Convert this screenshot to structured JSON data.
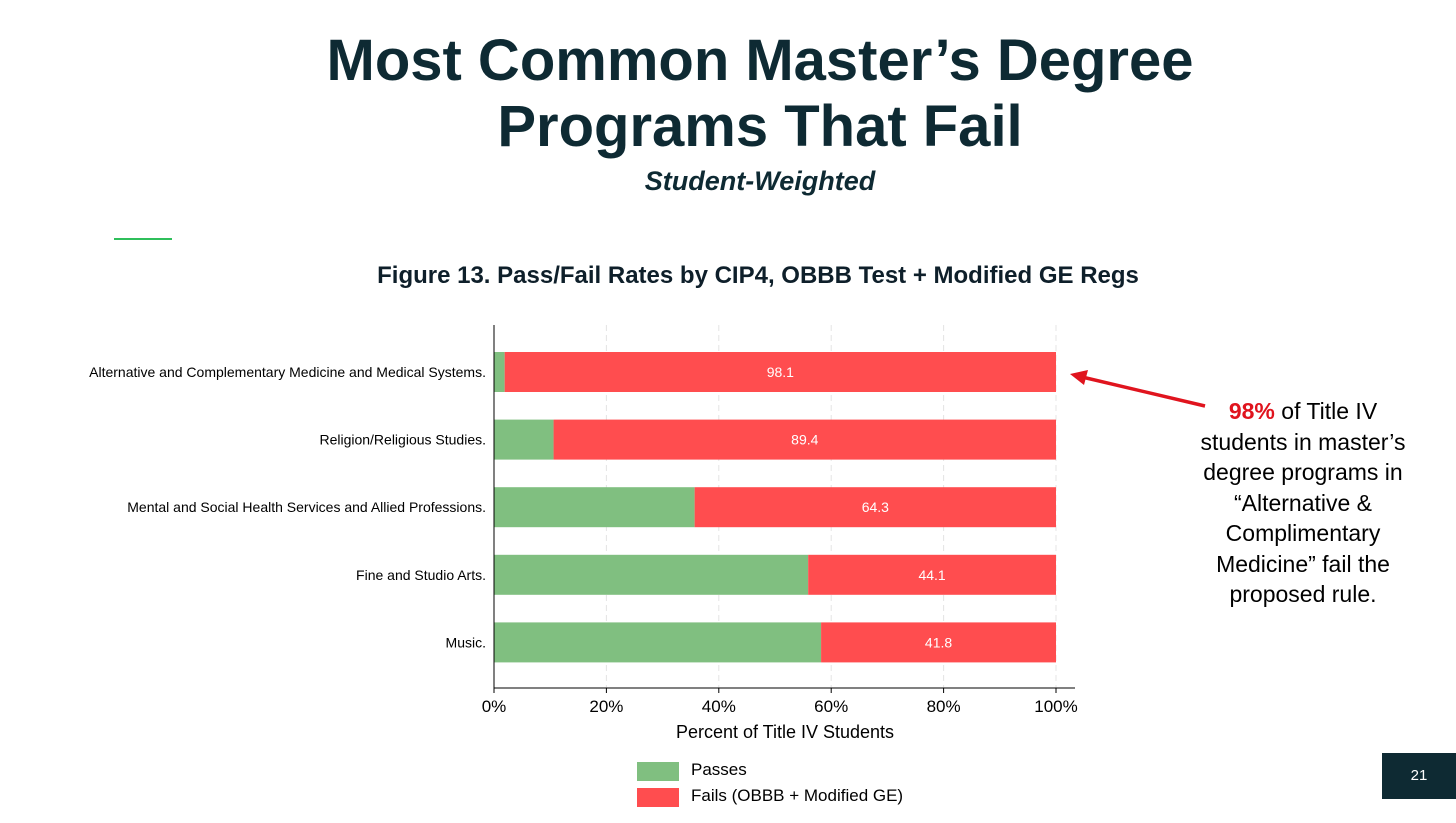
{
  "slide": {
    "title_line1": "Most Common Master’s Degree",
    "title_line2": "Programs That Fail",
    "subtitle": "Student-Weighted",
    "page_number": "21"
  },
  "callout": {
    "highlight": "98%",
    "text": " of Title IV students in master’s degree programs in “Alternative & Complimentary Medicine” fail the proposed rule."
  },
  "colors": {
    "passes": "#80bf80",
    "fails": "#ff4d4f",
    "title": "#0e2a33",
    "arrow": "#e0141e",
    "accent": "#2fbf5b"
  },
  "chart_data": {
    "type": "bar",
    "orientation": "horizontal",
    "stacked": true,
    "title": "Figure 13. Pass/Fail Rates by CIP4, OBBB Test + Modified GE Regs",
    "xlabel": "Percent of Title IV Students",
    "ylabel": "",
    "xlim": [
      0,
      100
    ],
    "x_ticks": [
      "0%",
      "20%",
      "40%",
      "60%",
      "80%",
      "100%"
    ],
    "grid": "vertical dashed",
    "legend_position": "bottom",
    "categories": [
      "Alternative and Complementary Medicine and Medical Systems.",
      "Religion/Religious Studies.",
      "Mental and Social Health Services and Allied Professions.",
      "Fine and Studio Arts.",
      "Music."
    ],
    "series": [
      {
        "name": "Passes",
        "values": [
          1.9,
          10.6,
          35.7,
          55.9,
          58.2
        ]
      },
      {
        "name": "Fails (OBBB + Modified GE)",
        "values": [
          98.1,
          89.4,
          64.3,
          44.1,
          41.8
        ]
      }
    ],
    "data_labels": [
      "98.1",
      "89.4",
      "64.3",
      "44.1",
      "41.8"
    ]
  }
}
